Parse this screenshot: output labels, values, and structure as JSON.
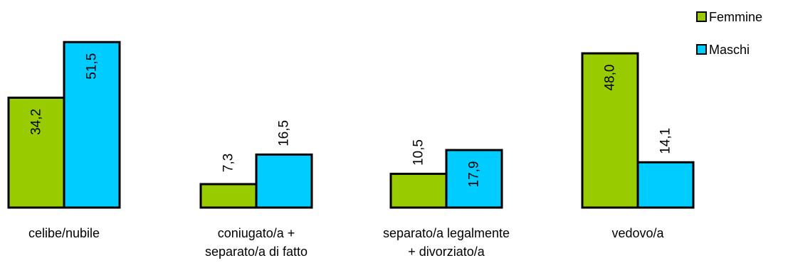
{
  "chart_data": {
    "type": "bar",
    "title": "",
    "xlabel": "",
    "ylabel": "",
    "ylim": [
      0,
      55
    ],
    "grid": false,
    "legend_position": "top-right",
    "categories": [
      [
        "celibe/nubile"
      ],
      [
        "coniugato/a +",
        "separato/a di fatto"
      ],
      [
        "separato/a legalmente",
        "+ divorziato/a"
      ],
      [
        "vedovo/a"
      ]
    ],
    "series": [
      {
        "name": "Femmine",
        "color": "#99cc00",
        "values": [
          34.2,
          7.3,
          10.5,
          48.0
        ],
        "labels": [
          "34,2",
          "7,3",
          "10,5",
          "48,0"
        ]
      },
      {
        "name": "Maschi",
        "color": "#00ccff",
        "values": [
          51.5,
          16.5,
          17.9,
          14.1
        ],
        "labels": [
          "51,5",
          "16,5",
          "17,9",
          "14,1"
        ]
      }
    ]
  }
}
